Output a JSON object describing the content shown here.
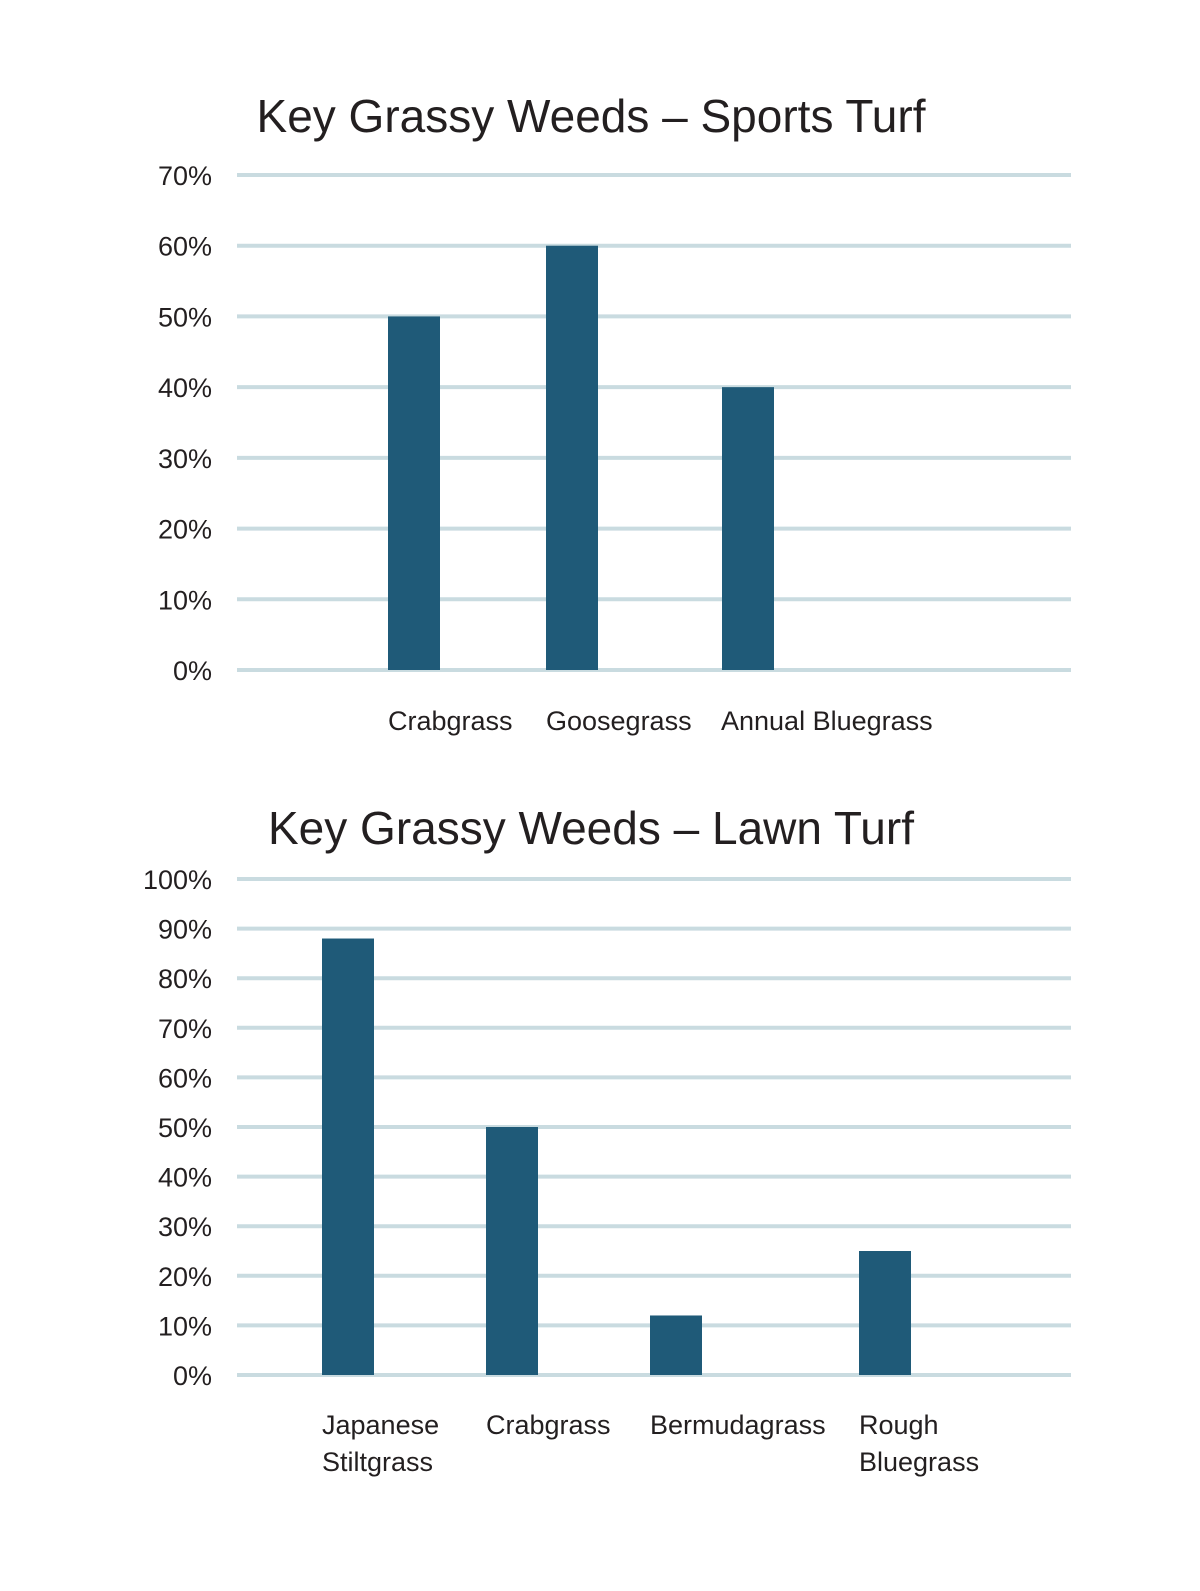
{
  "colors": {
    "bar": "#1f5a78",
    "grid": "#c9dbe0",
    "text": "#231f20"
  },
  "chart_data": [
    {
      "type": "bar",
      "title": "Key Grassy Weeds – Sports Turf",
      "xlabel": "",
      "ylabel": "",
      "categories": [
        "Crabgrass",
        "Goosegrass",
        "Annual Bluegrass"
      ],
      "values": [
        50,
        60,
        40
      ],
      "ylim": [
        0,
        70
      ],
      "yticks": [
        0,
        10,
        20,
        30,
        40,
        50,
        60,
        70
      ],
      "ytick_labels": [
        "0%",
        "10%",
        "20%",
        "30%",
        "40%",
        "50%",
        "60%",
        "70%"
      ],
      "grid": true
    },
    {
      "type": "bar",
      "title": "Key Grassy Weeds – Lawn Turf",
      "xlabel": "",
      "ylabel": "",
      "categories": [
        [
          "Japanese",
          "Stiltgrass"
        ],
        [
          "Crabgrass"
        ],
        [
          "Bermudagrass"
        ],
        [
          "Rough",
          "Bluegrass"
        ]
      ],
      "values": [
        88,
        50,
        12,
        25
      ],
      "ylim": [
        0,
        100
      ],
      "yticks": [
        0,
        10,
        20,
        30,
        40,
        50,
        60,
        70,
        80,
        90,
        100
      ],
      "ytick_labels": [
        "0%",
        "10%",
        "20%",
        "30%",
        "40%",
        "50%",
        "60%",
        "70%",
        "80%",
        "90%",
        "100%"
      ],
      "grid": true
    }
  ]
}
